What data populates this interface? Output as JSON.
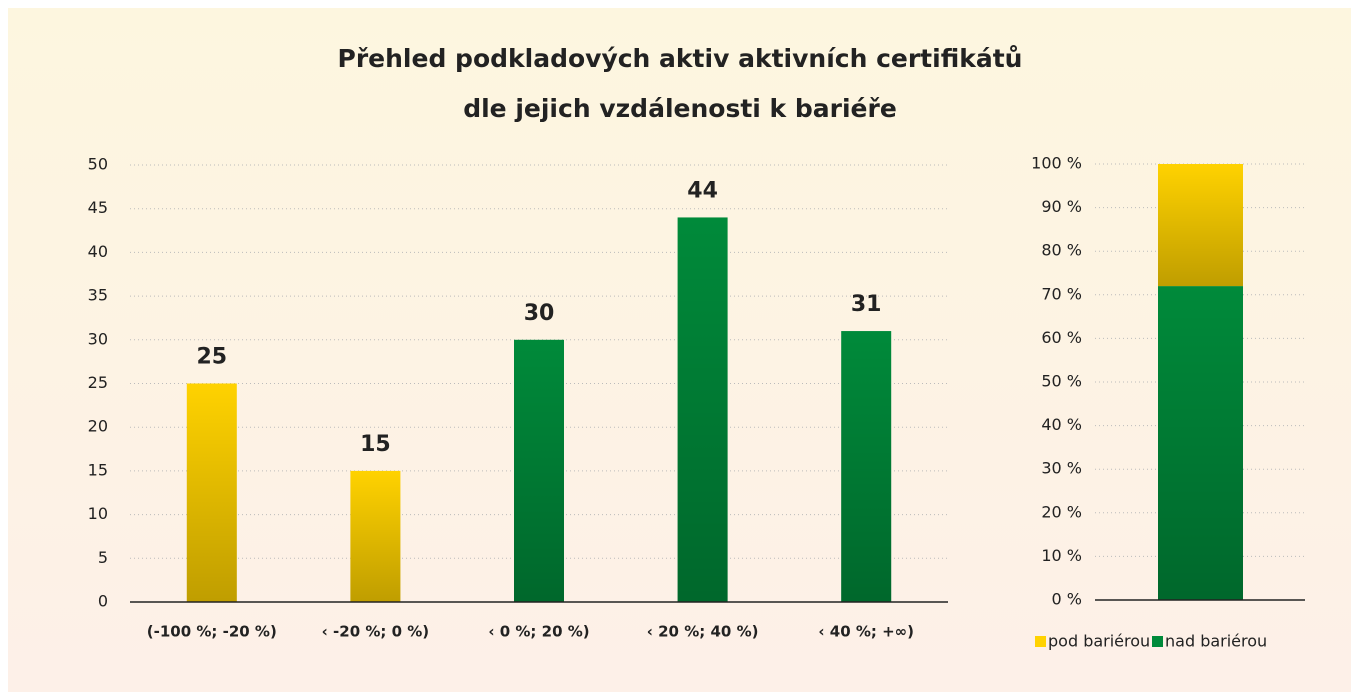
{
  "chart_data": [
    {
      "type": "bar",
      "title": [
        "Přehled podkladových aktiv aktivních certifikátů",
        "dle jejich vzdálenosti k bariéře"
      ],
      "categories": [
        "(-100 %; -20 %)",
        "‹ -20 %; 0 %)",
        "‹ 0 %; 20 %)",
        "‹ 20 %; 40 %)",
        "‹ 40 %; +∞)"
      ],
      "values": [
        25,
        15,
        30,
        44,
        31
      ],
      "colors": [
        "#ffd200",
        "#ffd200",
        "#008a3a",
        "#008a3a",
        "#008a3a"
      ],
      "ylim": [
        0,
        50
      ],
      "yticks": [
        0,
        5,
        10,
        15,
        20,
        25,
        30,
        35,
        40,
        45,
        50
      ],
      "grid": true
    },
    {
      "type": "stacked_bar",
      "series": [
        {
          "name": "pod bariérou",
          "color": "#ffd200",
          "values": [
            28
          ]
        },
        {
          "name": "nad bariérou",
          "color": "#008a3a",
          "values": [
            72
          ]
        }
      ],
      "ylim": [
        0,
        100
      ],
      "yticks": [
        {
          "value": 0,
          "label": "0 %"
        },
        {
          "value": 10,
          "label": "10 %"
        },
        {
          "value": 20,
          "label": "20 %"
        },
        {
          "value": 30,
          "label": "30 %"
        },
        {
          "value": 40,
          "label": "40 %"
        },
        {
          "value": 50,
          "label": "50 %"
        },
        {
          "value": 60,
          "label": "60 %"
        },
        {
          "value": 70,
          "label": "70 %"
        },
        {
          "value": 80,
          "label": "80 %"
        },
        {
          "value": 90,
          "label": "90 %"
        },
        {
          "value": 100,
          "label": "100 %"
        }
      ],
      "grid": true,
      "legend": "bottom"
    }
  ]
}
